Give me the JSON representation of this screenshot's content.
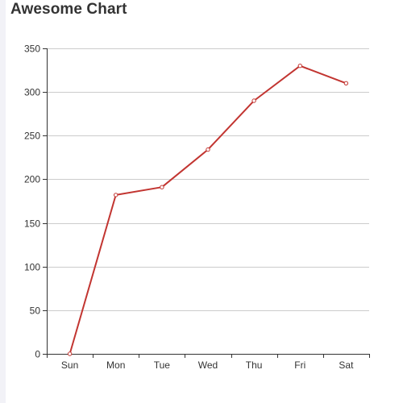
{
  "chart_data": {
    "type": "line",
    "title": "Awesome Chart",
    "categories": [
      "Sun",
      "Mon",
      "Tue",
      "Wed",
      "Thu",
      "Fri",
      "Sat"
    ],
    "series": [
      {
        "values": [
          0,
          182,
          191,
          234,
          290,
          330,
          310
        ],
        "color": "#c23531"
      }
    ],
    "ylim": [
      0,
      350
    ],
    "yticks": [
      0,
      50,
      100,
      150,
      200,
      250,
      300,
      350
    ],
    "grid": true,
    "legend": "none"
  }
}
